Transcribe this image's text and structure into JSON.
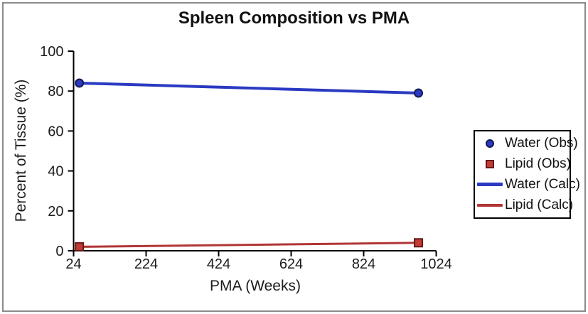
{
  "window": {
    "background": "#ffffff",
    "frame_color": "#8a8a8a"
  },
  "chart_data": {
    "type": "line",
    "title": "Spleen Composition vs PMA",
    "xlabel": "PMA (Weeks)",
    "ylabel": "Percent of Tissue (%)",
    "xlim": [
      24,
      1024
    ],
    "ylim": [
      0,
      100
    ],
    "xticks": [
      24,
      224,
      424,
      624,
      824,
      1024
    ],
    "yticks": [
      0,
      20,
      40,
      60,
      80,
      100
    ],
    "grid": false,
    "legend_position": "outside-right",
    "axis_color": "#000000",
    "series": [
      {
        "name": "Water (Calc)",
        "type": "line",
        "color": "#2b3ac1",
        "width": 4,
        "points": [
          [
            40,
            84
          ],
          [
            975,
            79
          ]
        ]
      },
      {
        "name": "Lipid (Calc)",
        "type": "line",
        "color": "#b23535",
        "width": 3,
        "points": [
          [
            40,
            2
          ],
          [
            975,
            4
          ]
        ]
      },
      {
        "name": "Water (Obs)",
        "type": "scatter",
        "marker": "circle",
        "color": "#2b3ac1",
        "edge_color": "#101a52",
        "points": [
          [
            40,
            84
          ],
          [
            975,
            79
          ]
        ]
      },
      {
        "name": "Lipid (Obs)",
        "type": "scatter",
        "marker": "square",
        "color": "#c23b34",
        "edge_color": "#641a17",
        "points": [
          [
            40,
            2
          ],
          [
            975,
            4
          ]
        ]
      }
    ],
    "legend_order": [
      "Water (Obs)",
      "Lipid (Obs)",
      "Water (Calc)",
      "Lipid (Calc)"
    ]
  }
}
